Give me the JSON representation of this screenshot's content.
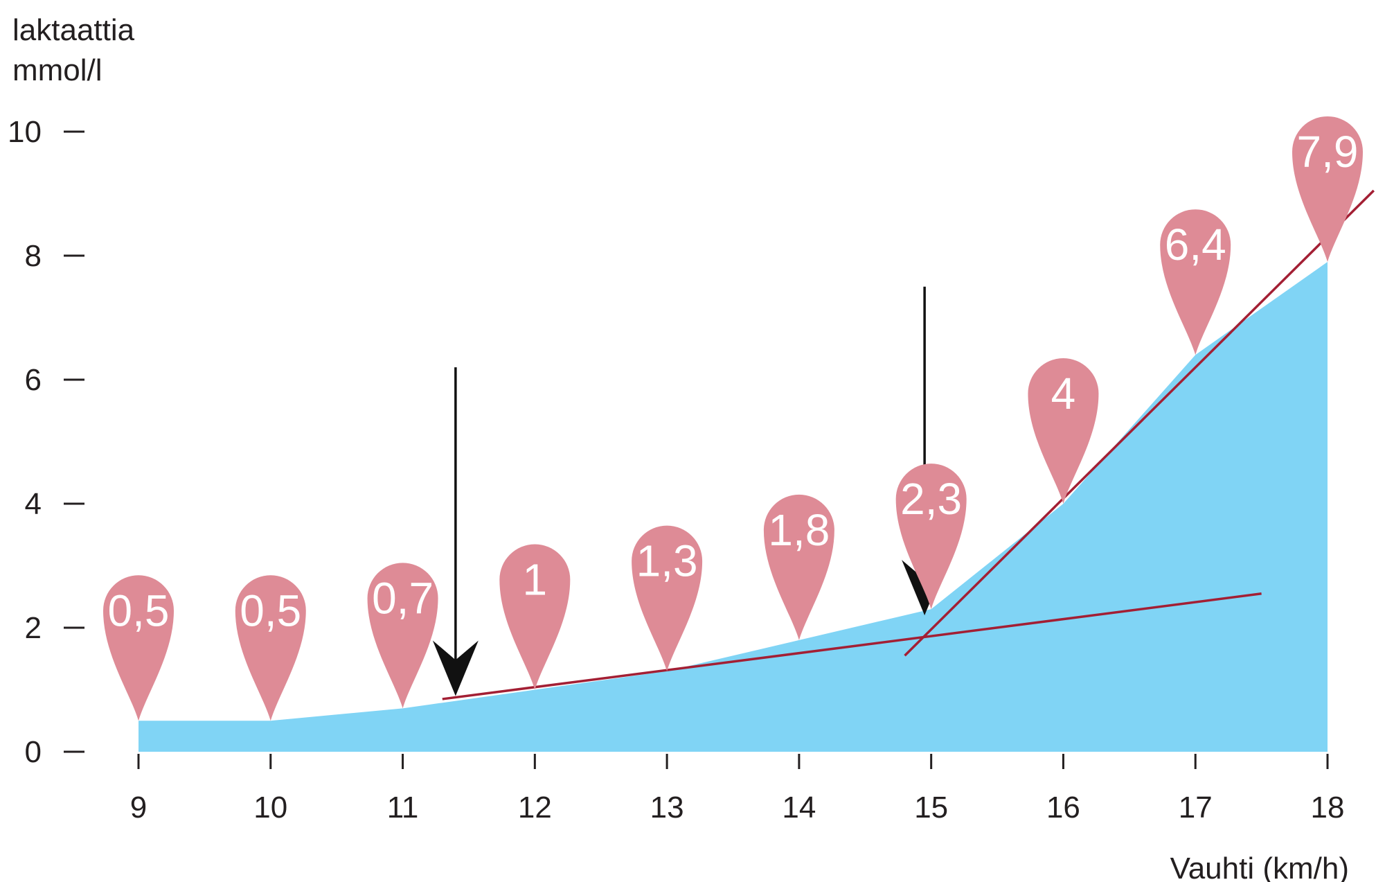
{
  "chart_data": {
    "type": "area",
    "ylabel_line1": "laktaattia",
    "ylabel_line2": "mmol/l",
    "xlabel": "Vauhti (km/h)",
    "x": [
      9,
      10,
      11,
      12,
      13,
      14,
      15,
      16,
      17,
      18
    ],
    "values": [
      0.5,
      0.5,
      0.7,
      1,
      1.3,
      1.8,
      2.3,
      4,
      6.4,
      7.9
    ],
    "value_labels": [
      "0,5",
      "0,5",
      "0,7",
      "1",
      "1,3",
      "1,8",
      "2,3",
      "4",
      "6,4",
      "7,9"
    ],
    "xlim": [
      9,
      18
    ],
    "ylim": [
      0,
      10
    ],
    "yticks": [
      "0",
      "2",
      "4",
      "6",
      "8",
      "10"
    ],
    "xticks": [
      "9",
      "10",
      "11",
      "12",
      "13",
      "14",
      "15",
      "16",
      "17",
      "18"
    ],
    "trend_lines": [
      {
        "from": [
          11.3,
          0.85
        ],
        "to": [
          17.5,
          2.55
        ]
      },
      {
        "from": [
          14.8,
          1.55
        ],
        "to": [
          18.35,
          9.05
        ]
      }
    ],
    "arrows": [
      {
        "x": 11.4,
        "from_y": 6.2,
        "to_y": 0.9
      },
      {
        "x": 14.95,
        "from_y": 7.5,
        "to_y": 2.2
      }
    ],
    "colors": {
      "area": "#80d4f5",
      "bubble": "#de8b96",
      "trend": "#a31f34",
      "arrow": "#111111",
      "axis": "#231f20"
    }
  }
}
